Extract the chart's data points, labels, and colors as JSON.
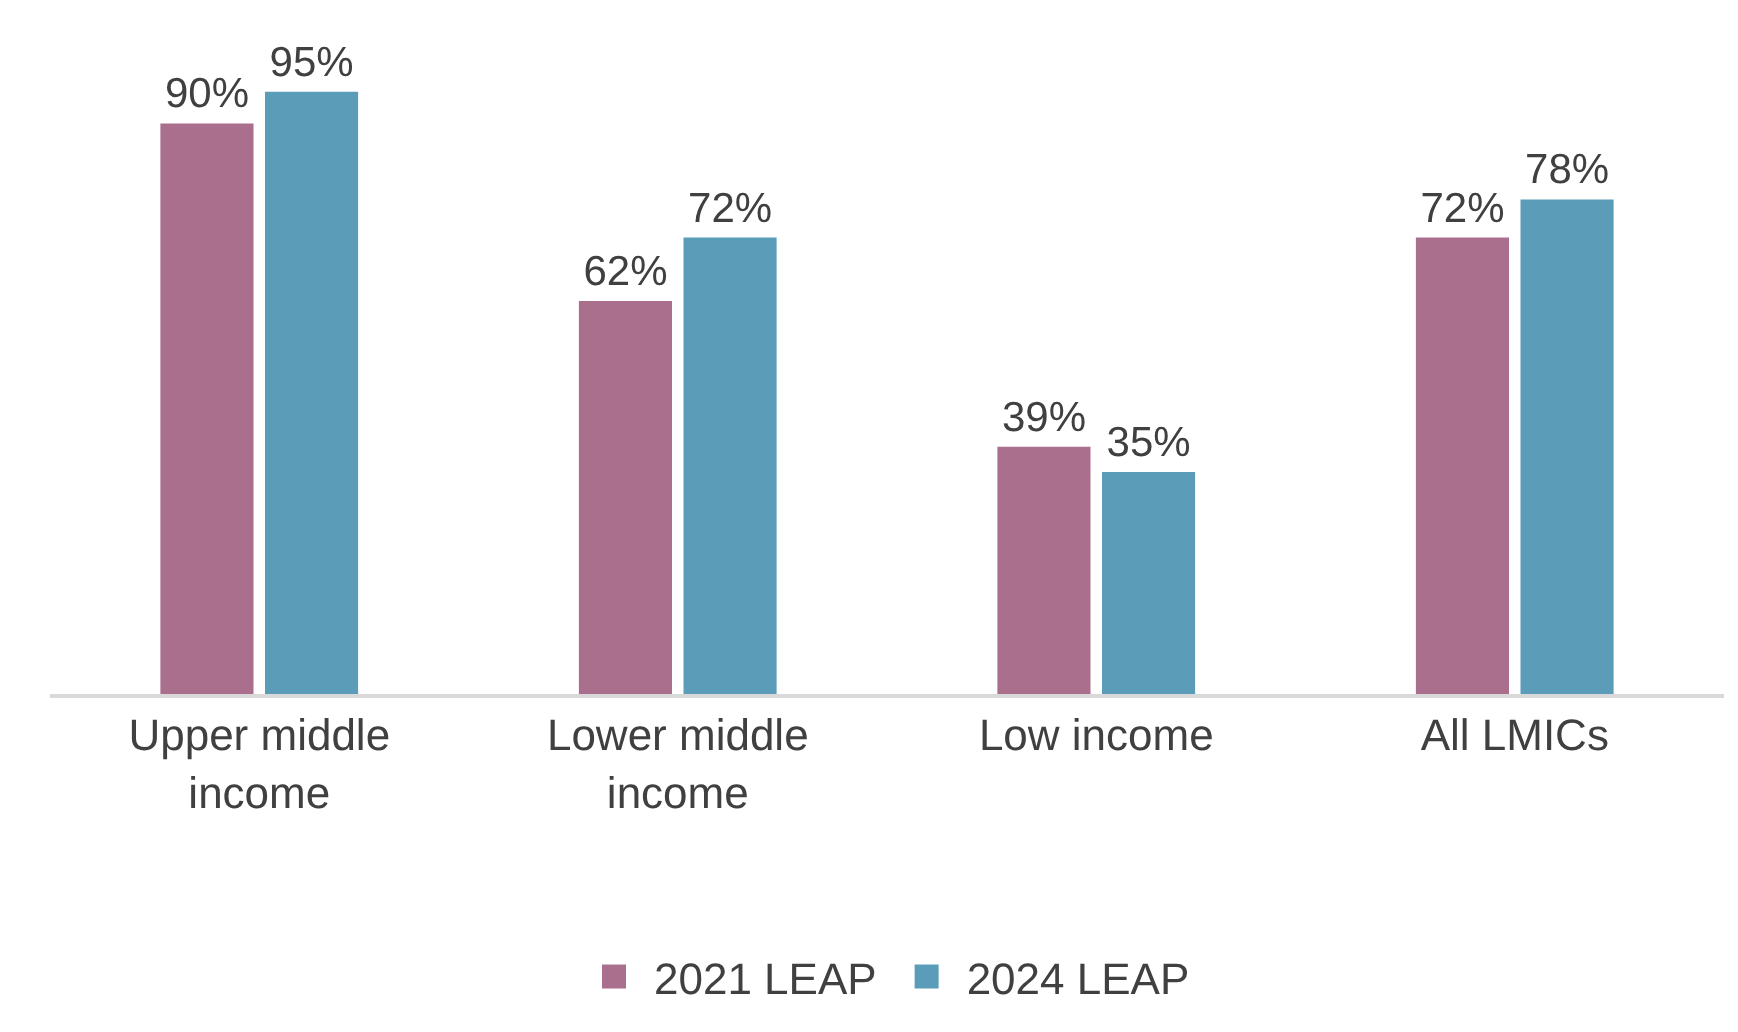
{
  "chart_data": {
    "type": "bar",
    "categories": [
      "Upper middle income",
      "Lower middle income",
      "Low income",
      "All LMICs"
    ],
    "series": [
      {
        "name": "2021 LEAP",
        "color": "#ab6f8e",
        "values": [
          90,
          62,
          39,
          72
        ],
        "value_labels": [
          "90%",
          "62%",
          "39%",
          "72%"
        ]
      },
      {
        "name": "2024 LEAP",
        "color": "#5b9db9",
        "values": [
          95,
          72,
          35,
          78
        ],
        "value_labels": [
          "95%",
          "72%",
          "35%",
          "78%"
        ]
      }
    ],
    "tick_labels": "x",
    "legend": "bottom",
    "grid": false
  }
}
